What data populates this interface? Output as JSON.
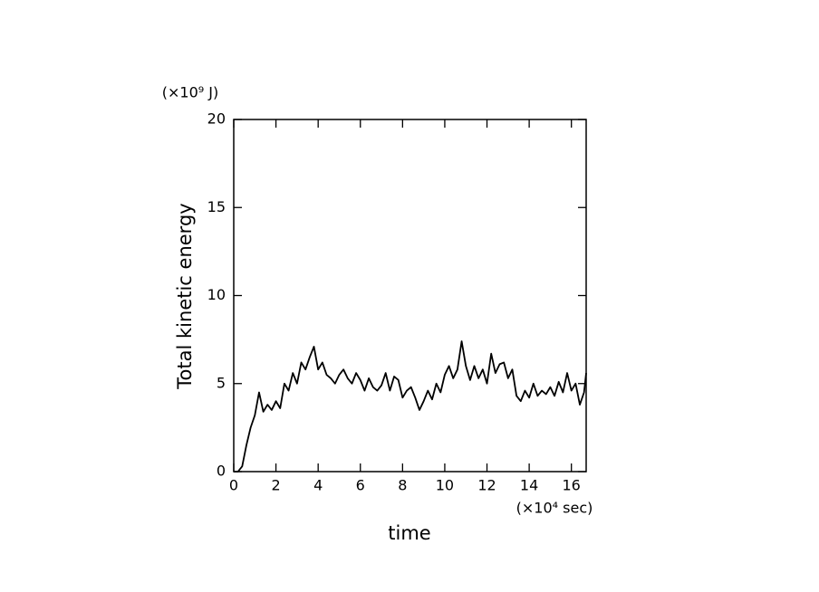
{
  "chart_data": {
    "type": "line",
    "y_label": "Total kinetic energy",
    "x_label": "time",
    "y_unit": "(×10⁹ J)",
    "x_unit": "(×10⁴ sec)",
    "xlim": [
      0,
      16.7
    ],
    "ylim": [
      0,
      20
    ],
    "xticks": [
      0,
      2,
      4,
      6,
      8,
      10,
      12,
      14,
      16
    ],
    "yticks": [
      0,
      5,
      10,
      15,
      20
    ],
    "color": "#000000",
    "x": [
      0,
      0.2,
      0.4,
      0.6,
      0.8,
      1.0,
      1.2,
      1.4,
      1.6,
      1.8,
      2.0,
      2.2,
      2.4,
      2.6,
      2.8,
      3.0,
      3.2,
      3.4,
      3.6,
      3.8,
      4.0,
      4.2,
      4.4,
      4.6,
      4.8,
      5.0,
      5.2,
      5.4,
      5.6,
      5.8,
      6.0,
      6.2,
      6.4,
      6.6,
      6.8,
      7.0,
      7.2,
      7.4,
      7.6,
      7.8,
      8.0,
      8.2,
      8.4,
      8.6,
      8.8,
      9.0,
      9.2,
      9.4,
      9.6,
      9.8,
      10.0,
      10.2,
      10.4,
      10.6,
      10.8,
      11.0,
      11.2,
      11.4,
      11.6,
      11.8,
      12.0,
      12.2,
      12.4,
      12.6,
      12.8,
      13.0,
      13.2,
      13.4,
      13.6,
      13.8,
      14.0,
      14.2,
      14.4,
      14.6,
      14.8,
      15.0,
      15.2,
      15.4,
      15.6,
      15.8,
      16.0,
      16.2,
      16.4,
      16.6,
      16.7
    ],
    "values": [
      0,
      0,
      0.3,
      1.5,
      2.5,
      3.2,
      4.5,
      3.4,
      3.8,
      3.5,
      4.0,
      3.6,
      5.0,
      4.6,
      5.6,
      5.0,
      6.2,
      5.8,
      6.5,
      7.1,
      5.8,
      6.2,
      5.5,
      5.3,
      5.0,
      5.5,
      5.8,
      5.3,
      5.0,
      5.6,
      5.2,
      4.6,
      5.3,
      4.8,
      4.6,
      4.9,
      5.6,
      4.6,
      5.4,
      5.2,
      4.2,
      4.6,
      4.8,
      4.2,
      3.5,
      4.0,
      4.6,
      4.1,
      5.0,
      4.5,
      5.5,
      6.0,
      5.3,
      5.8,
      7.4,
      6.0,
      5.2,
      6.0,
      5.3,
      5.8,
      5.0,
      6.7,
      5.6,
      6.1,
      6.2,
      5.3,
      5.8,
      4.3,
      4.0,
      4.6,
      4.2,
      5.0,
      4.3,
      4.6,
      4.4,
      4.8,
      4.3,
      5.1,
      4.5,
      5.6,
      4.6,
      5.0,
      3.8,
      4.5,
      5.6
    ]
  }
}
